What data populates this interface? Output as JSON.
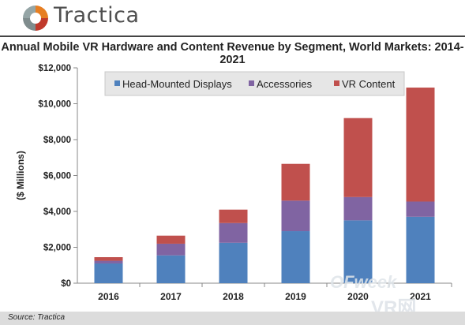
{
  "brand": {
    "name": "Tractica"
  },
  "watermark": {
    "text": "OFweek",
    "text2": "VR网"
  },
  "source": "Source: Tractica",
  "chart_data": {
    "type": "bar",
    "stacked": true,
    "title": "Annual Mobile VR Hardware and Content Revenue by Segment, World Markets: 2014-2021",
    "ylabel": "($ Millions)",
    "xlabel": "",
    "ylim": [
      0,
      12000
    ],
    "yticks": [
      "$0",
      "$2,000",
      "$4,000",
      "$6,000",
      "$8,000",
      "$10,000",
      "$12,000"
    ],
    "grid": false,
    "legend": "top",
    "categories": [
      "2016",
      "2017",
      "2018",
      "2019",
      "2020",
      "2021"
    ],
    "series": [
      {
        "name": "Head-Mounted Displays",
        "color": "#4f81bd",
        "values": [
          1100,
          1550,
          2250,
          2900,
          3500,
          3700
        ]
      },
      {
        "name": "Accessories",
        "color": "#8064a2",
        "values": [
          150,
          650,
          1100,
          1700,
          1300,
          850
        ]
      },
      {
        "name": "VR Content",
        "color": "#c0504d",
        "values": [
          200,
          450,
          750,
          2050,
          4400,
          6350
        ]
      }
    ]
  }
}
